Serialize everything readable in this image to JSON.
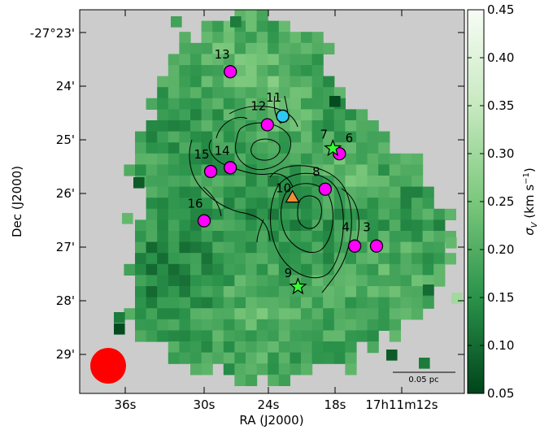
{
  "chart_data": {
    "type": "heatmap",
    "xlabel": "RA (J2000)",
    "ylabel": "Dec (J2000)",
    "colorbar": {
      "label": "σV (km s⁻¹)",
      "label_main": "σ",
      "label_sub": "V",
      "label_unit": " (km s",
      "label_exp": "−1",
      "label_close": ")",
      "range": [
        0.05,
        0.45
      ],
      "ticks": [
        "0.05",
        "0.10",
        "0.15",
        "0.20",
        "0.25",
        "0.30",
        "0.35",
        "0.40",
        "0.45"
      ],
      "colormap": [
        "#00441b",
        "#2a924a",
        "#7bc87c",
        "#c7e9c0",
        "#f7fcf5"
      ]
    },
    "x_tick_labels": [
      "36s",
      "30s",
      "24s",
      "18s",
      "17h11m12s"
    ],
    "y_tick_labels": [
      "-27°23'",
      "24'",
      "25'",
      "26'",
      "27'",
      "28'",
      "29'"
    ],
    "background_color": "#cccccc",
    "sources": [
      {
        "id": "3",
        "marker": "circle",
        "color": "#ff00ff",
        "ra_s": 14.2,
        "dec_min": 26.98
      },
      {
        "id": "4",
        "marker": "circle",
        "color": "#ff00ff",
        "ra_s": 16.2,
        "dec_min": 26.98
      },
      {
        "id": "6",
        "marker": "circle",
        "color": "#ff00ff",
        "ra_s": 17.6,
        "dec_min": 25.26
      },
      {
        "id": "7",
        "marker": "star",
        "color": "#33ff33",
        "ra_s": 18.2,
        "dec_min": 25.16
      },
      {
        "id": "8",
        "marker": "circle",
        "color": "#ff00ff",
        "ra_s": 18.9,
        "dec_min": 25.92
      },
      {
        "id": "9",
        "marker": "star",
        "color": "#33ff33",
        "ra_s": 21.4,
        "dec_min": 27.74
      },
      {
        "id": "10",
        "marker": "triangle",
        "color": "#f08c3a",
        "ra_s": 21.9,
        "dec_min": 26.07
      },
      {
        "id": "11",
        "marker": "circle",
        "color": "#2fc8f0",
        "ra_s": 22.8,
        "dec_min": 24.56
      },
      {
        "id": "12",
        "marker": "circle",
        "color": "#ff00ff",
        "ra_s": 24.2,
        "dec_min": 24.72
      },
      {
        "id": "13",
        "marker": "circle",
        "color": "#ff00ff",
        "ra_s": 27.6,
        "dec_min": 23.73
      },
      {
        "id": "14",
        "marker": "circle",
        "color": "#ff00ff",
        "ra_s": 27.6,
        "dec_min": 25.52
      },
      {
        "id": "15",
        "marker": "circle",
        "color": "#ff00ff",
        "ra_s": 29.4,
        "dec_min": 25.59
      },
      {
        "id": "16",
        "marker": "circle",
        "color": "#ff00ff",
        "ra_s": 30.0,
        "dec_min": 26.51
      }
    ],
    "scale_bar": {
      "label": "0.05 pc"
    },
    "beam": {
      "color": "#ff0000"
    }
  }
}
